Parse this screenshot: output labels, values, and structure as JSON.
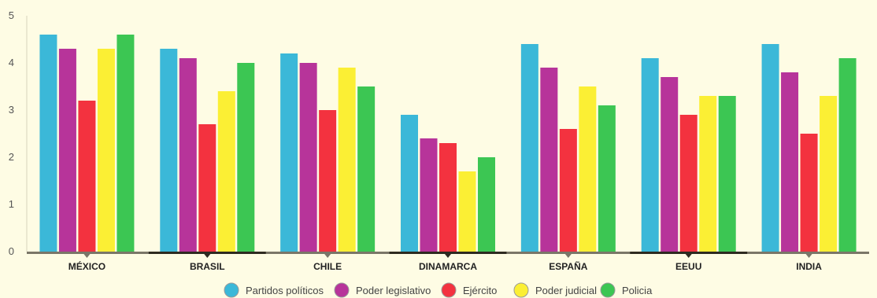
{
  "chart_data": {
    "type": "bar",
    "categories": [
      "MÉXICO",
      "BRASIL",
      "CHILE",
      "DINAMARCA",
      "ESPAÑA",
      "EEUU",
      "INDIA"
    ],
    "series": [
      {
        "name": "Partidos políticos",
        "color": "#3BB8D8",
        "values": [
          4.6,
          4.3,
          4.2,
          2.9,
          4.4,
          4.1,
          4.4
        ]
      },
      {
        "name": "Poder legislativo",
        "color": "#B7349A",
        "values": [
          4.3,
          4.1,
          4.0,
          2.4,
          3.9,
          3.7,
          3.8
        ]
      },
      {
        "name": "Ejército",
        "color": "#F3323F",
        "values": [
          3.2,
          2.7,
          3.0,
          2.3,
          2.6,
          2.9,
          2.5
        ]
      },
      {
        "name": "Poder judicial",
        "color": "#FBEF34",
        "values": [
          4.3,
          3.4,
          3.9,
          1.7,
          3.5,
          3.3,
          3.3
        ]
      },
      {
        "name": "Policia",
        "color": "#3CC653",
        "values": [
          4.6,
          4.0,
          3.5,
          2.0,
          3.1,
          3.3,
          4.1
        ]
      }
    ],
    "y_ticks": [
      0,
      1,
      2,
      3,
      4,
      5
    ],
    "ylim": [
      0,
      5
    ],
    "grid": false,
    "legend_position": "bottom-center",
    "title": "",
    "xlabel": "",
    "ylabel": ""
  }
}
